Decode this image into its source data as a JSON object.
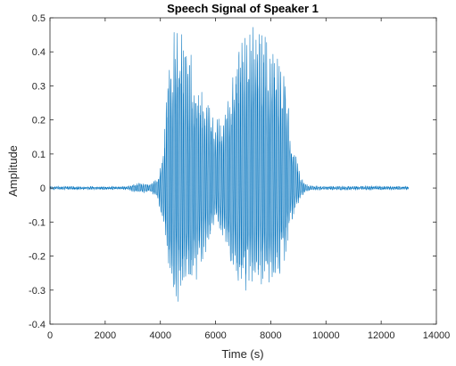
{
  "chart_data": {
    "type": "line",
    "title": "Speech Signal of Speaker 1",
    "xlabel": "Time (s)",
    "ylabel": "Amplitude",
    "xlim": [
      0,
      14000
    ],
    "ylim": [
      -0.4,
      0.5
    ],
    "x_ticks": [
      0,
      2000,
      4000,
      6000,
      8000,
      10000,
      12000,
      14000
    ],
    "x_tick_labels": [
      "0",
      "2000",
      "4000",
      "6000",
      "8000",
      "10000",
      "12000",
      "14000"
    ],
    "y_ticks": [
      -0.4,
      -0.3,
      -0.2,
      -0.1,
      0,
      0.1,
      0.2,
      0.3,
      0.4,
      0.5
    ],
    "y_tick_labels": [
      "-0.4",
      "-0.3",
      "-0.2",
      "-0.1",
      "0",
      "0.1",
      "0.2",
      "0.3",
      "0.4",
      "0.5"
    ],
    "grid": false,
    "box": true,
    "series": [
      {
        "color": "#0072BD",
        "sample_count": 13000,
        "envelope": {
          "x": [
            0,
            2800,
            3000,
            3300,
            3600,
            3900,
            4100,
            4300,
            4500,
            4650,
            4800,
            5000,
            5200,
            5500,
            5800,
            6000,
            6300,
            6600,
            6800,
            7000,
            7200,
            7500,
            7800,
            8100,
            8300,
            8500,
            8700,
            8900,
            9100,
            9300,
            9600,
            10000,
            11000,
            12000,
            13000
          ],
          "upper": [
            0.003,
            0.003,
            0.01,
            0.015,
            0.01,
            0.03,
            0.1,
            0.38,
            0.47,
            0.5,
            0.47,
            0.43,
            0.38,
            0.3,
            0.24,
            0.2,
            0.22,
            0.35,
            0.45,
            0.48,
            0.48,
            0.48,
            0.47,
            0.46,
            0.42,
            0.36,
            0.2,
            0.1,
            0.03,
            0.01,
            0.005,
            0.004,
            0.004,
            0.004,
            0.003
          ],
          "lower": [
            -0.003,
            -0.003,
            -0.01,
            -0.015,
            -0.01,
            -0.03,
            -0.12,
            -0.28,
            -0.35,
            -0.36,
            -0.34,
            -0.31,
            -0.3,
            -0.22,
            -0.15,
            -0.1,
            -0.15,
            -0.25,
            -0.3,
            -0.32,
            -0.32,
            -0.31,
            -0.3,
            -0.29,
            -0.27,
            -0.22,
            -0.12,
            -0.06,
            -0.03,
            -0.01,
            -0.005,
            -0.004,
            -0.004,
            -0.004,
            -0.003
          ]
        }
      }
    ]
  }
}
